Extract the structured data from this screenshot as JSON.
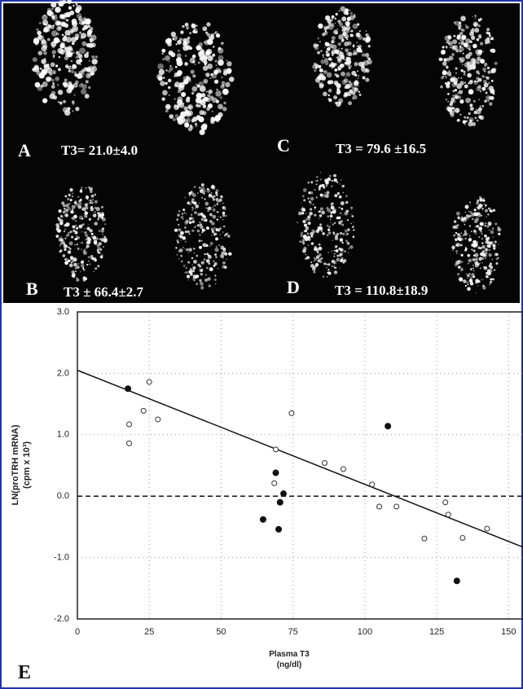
{
  "panels": [
    {
      "letter": "A",
      "caption": "T3= 21.0±4.0"
    },
    {
      "letter": "C",
      "caption": "T3 = 79.6 ±16.5"
    },
    {
      "letter": "B",
      "caption": "T3 ± 66.4±2.7"
    },
    {
      "letter": "D",
      "caption": "T3 = 110.8±18.9"
    }
  ],
  "chart_data": {
    "type": "scatter",
    "panel_label": "E",
    "y_label": [
      "LN(proTRH mRNA)",
      "(cpm x 10³)"
    ],
    "x_label": [
      "Plasma T3",
      "(ng/dl)"
    ],
    "xlim": [
      0,
      155
    ],
    "ylim": [
      -2,
      3
    ],
    "xticks": [
      0,
      25,
      50,
      75,
      100,
      125,
      150
    ],
    "yticks": [
      {
        "value": 3,
        "label": "3.0"
      },
      {
        "value": 2,
        "label": "2.0"
      },
      {
        "value": 1,
        "label": "1.0"
      },
      {
        "value": 0,
        "label": "0.0"
      },
      {
        "value": -1,
        "label": "-1.0"
      },
      {
        "value": -2,
        "label": "-2.0"
      }
    ],
    "grid": true,
    "series": [
      {
        "marker": "open",
        "color": "#333333",
        "x": [
          25,
          23,
          18,
          28,
          18,
          74.5,
          69,
          86,
          92.5,
          102.5,
          68.5,
          105,
          111,
          128,
          129,
          120.7,
          134,
          142.5
        ],
        "values": [
          1.86,
          1.39,
          1.17,
          1.25,
          0.86,
          1.35,
          0.76,
          0.54,
          0.44,
          0.19,
          0.21,
          -0.17,
          -0.17,
          -0.1,
          -0.3,
          -0.69,
          -0.68,
          -0.53
        ]
      },
      {
        "marker": "filled",
        "color": "#111111",
        "x": [
          17.6,
          108,
          69,
          71.7,
          70.5,
          64.6,
          70,
          132
        ],
        "values": [
          1.75,
          1.14,
          0.38,
          0.04,
          -0.1,
          -0.38,
          -0.54,
          -1.38
        ]
      }
    ],
    "fit_line": {
      "x": [
        0,
        155
      ],
      "values": [
        2.05,
        -0.83
      ],
      "color": "#111111"
    },
    "reference_line": 0
  }
}
